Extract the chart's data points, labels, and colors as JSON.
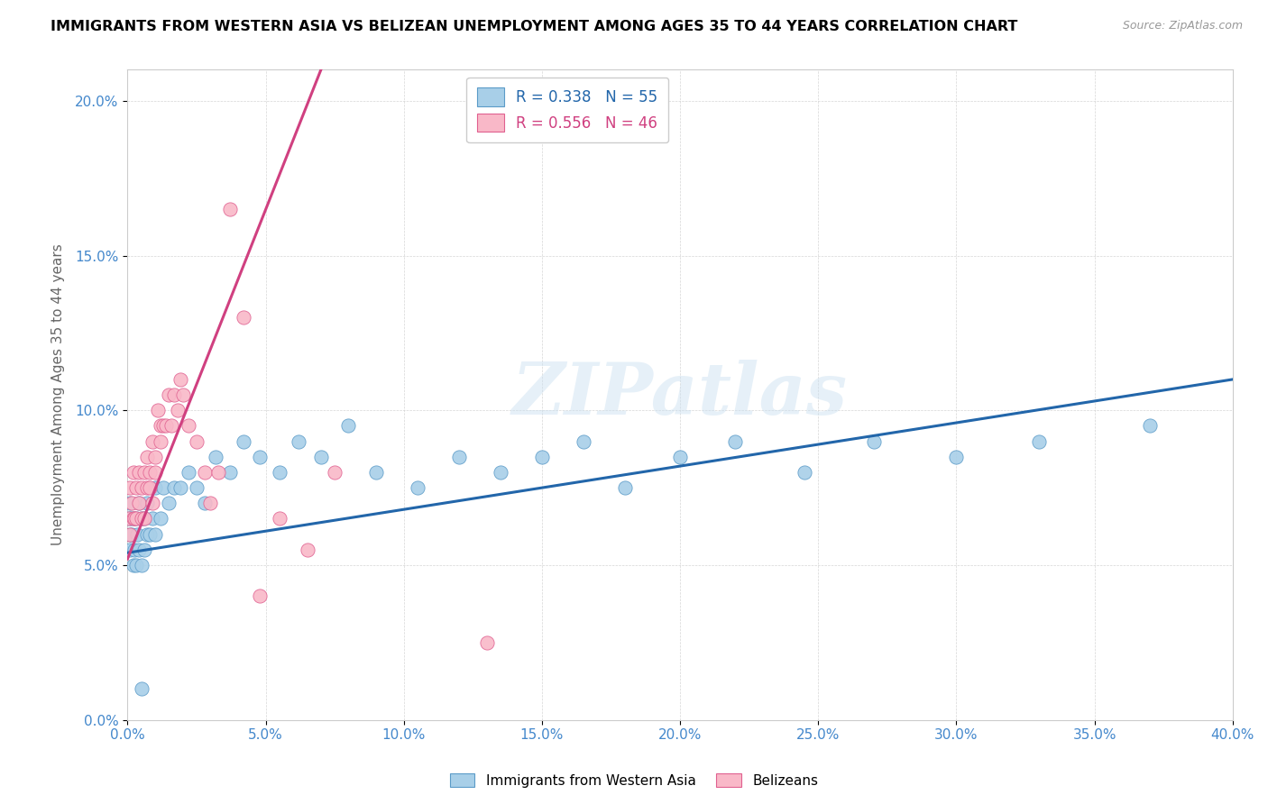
{
  "title": "IMMIGRANTS FROM WESTERN ASIA VS BELIZEAN UNEMPLOYMENT AMONG AGES 35 TO 44 YEARS CORRELATION CHART",
  "source": "Source: ZipAtlas.com",
  "ylabel": "Unemployment Among Ages 35 to 44 years",
  "xlim": [
    0.0,
    0.4
  ],
  "ylim": [
    0.0,
    0.21
  ],
  "xticks": [
    0.0,
    0.05,
    0.1,
    0.15,
    0.2,
    0.25,
    0.3,
    0.35,
    0.4
  ],
  "yticks": [
    0.0,
    0.05,
    0.1,
    0.15,
    0.2
  ],
  "blue_R": 0.338,
  "blue_N": 55,
  "pink_R": 0.556,
  "pink_N": 46,
  "blue_color": "#a8cfe8",
  "pink_color": "#f9b8c8",
  "blue_edge_color": "#5b9bc8",
  "pink_edge_color": "#e06090",
  "blue_line_color": "#2266aa",
  "pink_line_color": "#d04080",
  "tick_color": "#4488cc",
  "blue_label": "Immigrants from Western Asia",
  "pink_label": "Belizeans",
  "watermark": "ZIPatlas",
  "blue_scatter_x": [
    0.0005,
    0.0008,
    0.001,
    0.001,
    0.0012,
    0.0015,
    0.002,
    0.002,
    0.0025,
    0.003,
    0.003,
    0.0035,
    0.004,
    0.004,
    0.005,
    0.005,
    0.006,
    0.006,
    0.007,
    0.007,
    0.008,
    0.009,
    0.01,
    0.01,
    0.012,
    0.013,
    0.015,
    0.017,
    0.019,
    0.022,
    0.025,
    0.028,
    0.032,
    0.037,
    0.042,
    0.048,
    0.055,
    0.062,
    0.07,
    0.08,
    0.09,
    0.105,
    0.12,
    0.135,
    0.15,
    0.165,
    0.18,
    0.2,
    0.22,
    0.245,
    0.27,
    0.3,
    0.33,
    0.37,
    0.005
  ],
  "blue_scatter_y": [
    0.065,
    0.06,
    0.055,
    0.07,
    0.065,
    0.06,
    0.065,
    0.05,
    0.055,
    0.065,
    0.05,
    0.06,
    0.07,
    0.055,
    0.065,
    0.05,
    0.065,
    0.055,
    0.06,
    0.07,
    0.06,
    0.065,
    0.075,
    0.06,
    0.065,
    0.075,
    0.07,
    0.075,
    0.075,
    0.08,
    0.075,
    0.07,
    0.085,
    0.08,
    0.09,
    0.085,
    0.08,
    0.09,
    0.085,
    0.095,
    0.08,
    0.075,
    0.085,
    0.08,
    0.085,
    0.09,
    0.075,
    0.085,
    0.09,
    0.08,
    0.09,
    0.085,
    0.09,
    0.095,
    0.01
  ],
  "pink_scatter_x": [
    0.0005,
    0.001,
    0.001,
    0.0015,
    0.002,
    0.002,
    0.0025,
    0.003,
    0.003,
    0.004,
    0.004,
    0.005,
    0.005,
    0.006,
    0.006,
    0.007,
    0.007,
    0.008,
    0.008,
    0.009,
    0.009,
    0.01,
    0.01,
    0.011,
    0.012,
    0.012,
    0.013,
    0.014,
    0.015,
    0.016,
    0.017,
    0.018,
    0.019,
    0.02,
    0.022,
    0.025,
    0.028,
    0.03,
    0.033,
    0.037,
    0.042,
    0.048,
    0.055,
    0.065,
    0.075,
    0.13
  ],
  "pink_scatter_y": [
    0.065,
    0.06,
    0.075,
    0.07,
    0.065,
    0.08,
    0.065,
    0.075,
    0.065,
    0.07,
    0.08,
    0.075,
    0.065,
    0.08,
    0.065,
    0.075,
    0.085,
    0.08,
    0.075,
    0.09,
    0.07,
    0.085,
    0.08,
    0.1,
    0.095,
    0.09,
    0.095,
    0.095,
    0.105,
    0.095,
    0.105,
    0.1,
    0.11,
    0.105,
    0.095,
    0.09,
    0.08,
    0.07,
    0.08,
    0.165,
    0.13,
    0.04,
    0.065,
    0.055,
    0.08,
    0.025
  ],
  "blue_trend_x": [
    0.0,
    0.4
  ],
  "blue_trend_y": [
    0.054,
    0.11
  ],
  "pink_trend_x": [
    0.0,
    0.07
  ],
  "pink_trend_y": [
    0.052,
    0.21
  ]
}
